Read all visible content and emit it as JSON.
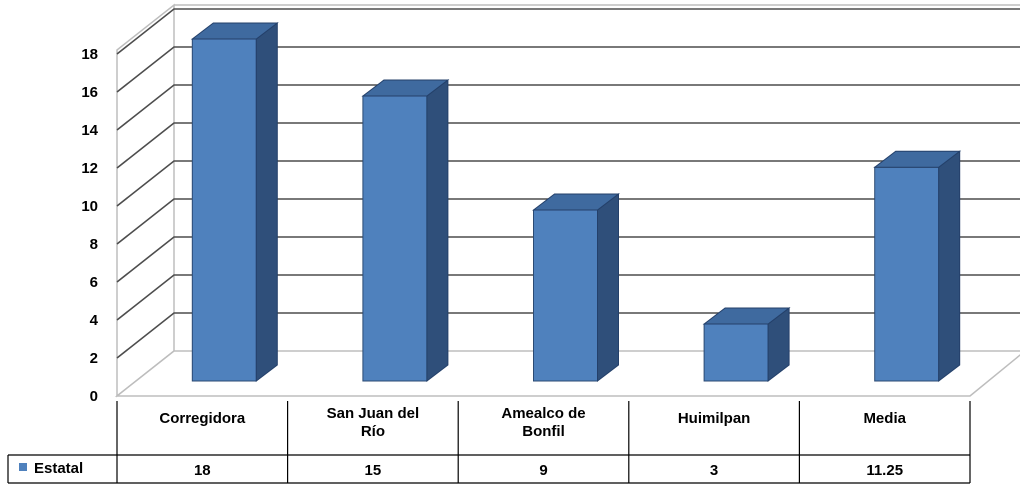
{
  "chart_data": {
    "type": "bar",
    "categories": [
      "Corregidora",
      "San Juan del Río",
      "Amealco de Bonfil",
      "Huimilpan",
      "Media"
    ],
    "series": [
      {
        "name": "Estatal",
        "values": [
          18,
          15,
          9,
          3,
          11.25
        ]
      }
    ],
    "value_labels": [
      "18",
      "15",
      "9",
      "3",
      "11.25"
    ],
    "y_ticks": [
      "0",
      "2",
      "4",
      "6",
      "8",
      "10",
      "12",
      "14",
      "16",
      "18"
    ],
    "ylim": [
      0,
      18
    ],
    "grid": true,
    "style": "3d-column",
    "legend": "data-table-left",
    "bar_color": "#4f81bd",
    "bar_side_color": "#2f4f7a",
    "bar_top_color": "#3f6a9f",
    "legend_key_color": "#4f81bd"
  }
}
